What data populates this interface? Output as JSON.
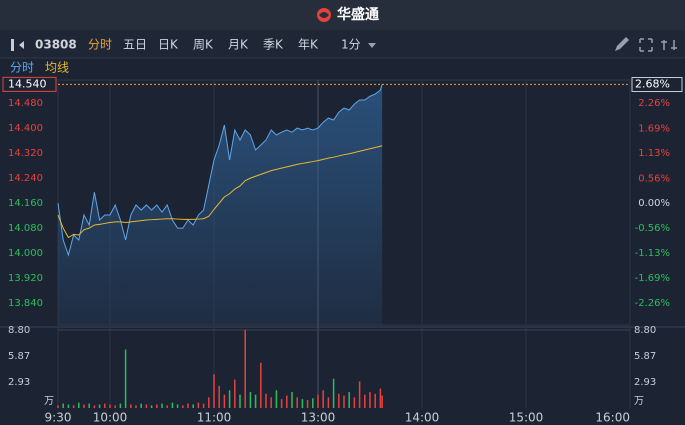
{
  "header": {
    "title": "华盛通"
  },
  "toolbar": {
    "code": "03808",
    "tabs": [
      "分时",
      "五日",
      "日K",
      "周K",
      "月K",
      "季K",
      "年K"
    ],
    "interval": "1分"
  },
  "chart_data": {
    "type": "line",
    "x": [
      "09:30",
      "09:33",
      "09:36",
      "09:39",
      "09:42",
      "09:45",
      "09:48",
      "09:51",
      "09:54",
      "09:57",
      "10:00",
      "10:03",
      "10:06",
      "10:09",
      "10:12",
      "10:15",
      "10:18",
      "10:21",
      "10:24",
      "10:27",
      "10:30",
      "10:33",
      "10:36",
      "10:39",
      "10:42",
      "10:45",
      "10:48",
      "10:51",
      "10:54",
      "10:57",
      "11:00",
      "11:03",
      "11:06",
      "11:09",
      "11:12",
      "11:15",
      "11:18",
      "11:21",
      "11:24",
      "11:27",
      "11:30",
      "11:33",
      "11:36",
      "11:39",
      "11:42",
      "11:45",
      "11:48",
      "11:51",
      "11:54",
      "11:57",
      "13:00",
      "13:03",
      "13:06",
      "13:09",
      "13:12",
      "13:15",
      "13:18",
      "13:21",
      "13:24",
      "13:27",
      "13:30",
      "13:33",
      "13:36",
      "13:37"
    ],
    "series": [
      {
        "name": "分时",
        "color": "#5ea6ec",
        "values": [
          14.16,
          14.042,
          13.994,
          14.058,
          14.042,
          14.122,
          14.09,
          14.195,
          14.106,
          14.122,
          14.122,
          14.154,
          14.106,
          14.042,
          14.122,
          14.154,
          14.138,
          14.154,
          14.138,
          14.154,
          14.131,
          14.154,
          14.106,
          14.08,
          14.08,
          14.106,
          14.09,
          14.122,
          14.138,
          14.218,
          14.298,
          14.346,
          14.41,
          14.298,
          14.394,
          14.362,
          14.394,
          14.378,
          14.33,
          14.346,
          14.362,
          14.394,
          14.378,
          14.387,
          14.394,
          14.387,
          14.4,
          14.394,
          14.4,
          14.394,
          14.4,
          14.419,
          14.432,
          14.426,
          14.451,
          14.464,
          14.458,
          14.477,
          14.49,
          14.49,
          14.502,
          14.509,
          14.522,
          14.54
        ]
      },
      {
        "name": "均线",
        "color": "#e8b830",
        "values": [
          14.122,
          14.08,
          14.05,
          14.06,
          14.058,
          14.075,
          14.08,
          14.09,
          14.092,
          14.095,
          14.098,
          14.1,
          14.1,
          14.098,
          14.1,
          14.102,
          14.104,
          14.106,
          14.107,
          14.108,
          14.109,
          14.11,
          14.11,
          14.109,
          14.108,
          14.108,
          14.108,
          14.109,
          14.11,
          14.118,
          14.14,
          14.16,
          14.18,
          14.19,
          14.205,
          14.215,
          14.232,
          14.24,
          14.246,
          14.252,
          14.258,
          14.264,
          14.268,
          14.272,
          14.276,
          14.28,
          14.284,
          14.287,
          14.29,
          14.293,
          14.296,
          14.3,
          14.304,
          14.307,
          14.311,
          14.315,
          14.318,
          14.322,
          14.326,
          14.33,
          14.334,
          14.338,
          14.342,
          14.344
        ]
      }
    ],
    "xticks": [
      "9:30",
      "10:00",
      "11:00",
      "13:00",
      "14:00",
      "15:00",
      "16:00"
    ],
    "ylim": [
      13.77,
      14.554
    ],
    "yticks": [
      {
        "value": 14.48,
        "label": "14.480"
      },
      {
        "value": 14.4,
        "label": "14.400"
      },
      {
        "value": 14.32,
        "label": "14.320"
      },
      {
        "value": 14.24,
        "label": "14.240"
      },
      {
        "value": 14.16,
        "label": "14.160"
      },
      {
        "value": 14.08,
        "label": "14.080"
      },
      {
        "value": 14,
        "label": "14.000"
      },
      {
        "value": 13.92,
        "label": "13.920"
      },
      {
        "value": 13.84,
        "label": "13.840"
      }
    ],
    "y2lim": [
      -2.754,
      2.782
    ],
    "y2ticks": [
      {
        "value": 2.26,
        "label": "2.26%"
      },
      {
        "value": 1.69,
        "label": "1.69%"
      },
      {
        "value": 1.13,
        "label": "1.13%"
      },
      {
        "value": 0.56,
        "label": "0.56%"
      },
      {
        "value": 0,
        "label": "0.00%"
      },
      {
        "value": -0.56,
        "label": "-0.56%"
      },
      {
        "value": -1.13,
        "label": "-1.13%"
      },
      {
        "value": -1.69,
        "label": "-1.69%"
      },
      {
        "value": -2.26,
        "label": "-2.26%"
      }
    ],
    "last_price": {
      "value": 14.54,
      "label": "14.540"
    },
    "last_change": {
      "value": 2.68,
      "label": "2.68%"
    },
    "up_color": "#e8413c",
    "down_color": "#2bbf5a",
    "volume": {
      "unit": "万",
      "ylim": [
        0,
        8.8
      ],
      "yticks": [
        {
          "value": 8.8,
          "label": "8.80"
        },
        5.87,
        2.93
      ],
      "values": [
        0.3,
        0.5,
        0.4,
        0.3,
        0.6,
        0.4,
        0.5,
        0.3,
        0.4,
        0.5,
        0.4,
        0.3,
        0.5,
        6.6,
        0.4,
        0.3,
        0.5,
        0.4,
        0.3,
        0.4,
        0.5,
        0.3,
        0.6,
        0.4,
        0.3,
        0.5,
        0.4,
        0.6,
        0.5,
        1.2,
        3.8,
        2.5,
        1.5,
        2.0,
        3.2,
        1.5,
        8.8,
        1.8,
        1.5,
        5.1,
        1.6,
        1.2,
        2.0,
        1.0,
        1.4,
        1.8,
        1.2,
        1.0,
        0.9,
        1.1,
        1.5,
        2.0,
        1.2,
        3.3,
        1.6,
        1.4,
        1.8,
        1.2,
        3.0,
        1.5,
        1.8,
        1.6,
        2.2,
        1.4
      ]
    }
  }
}
